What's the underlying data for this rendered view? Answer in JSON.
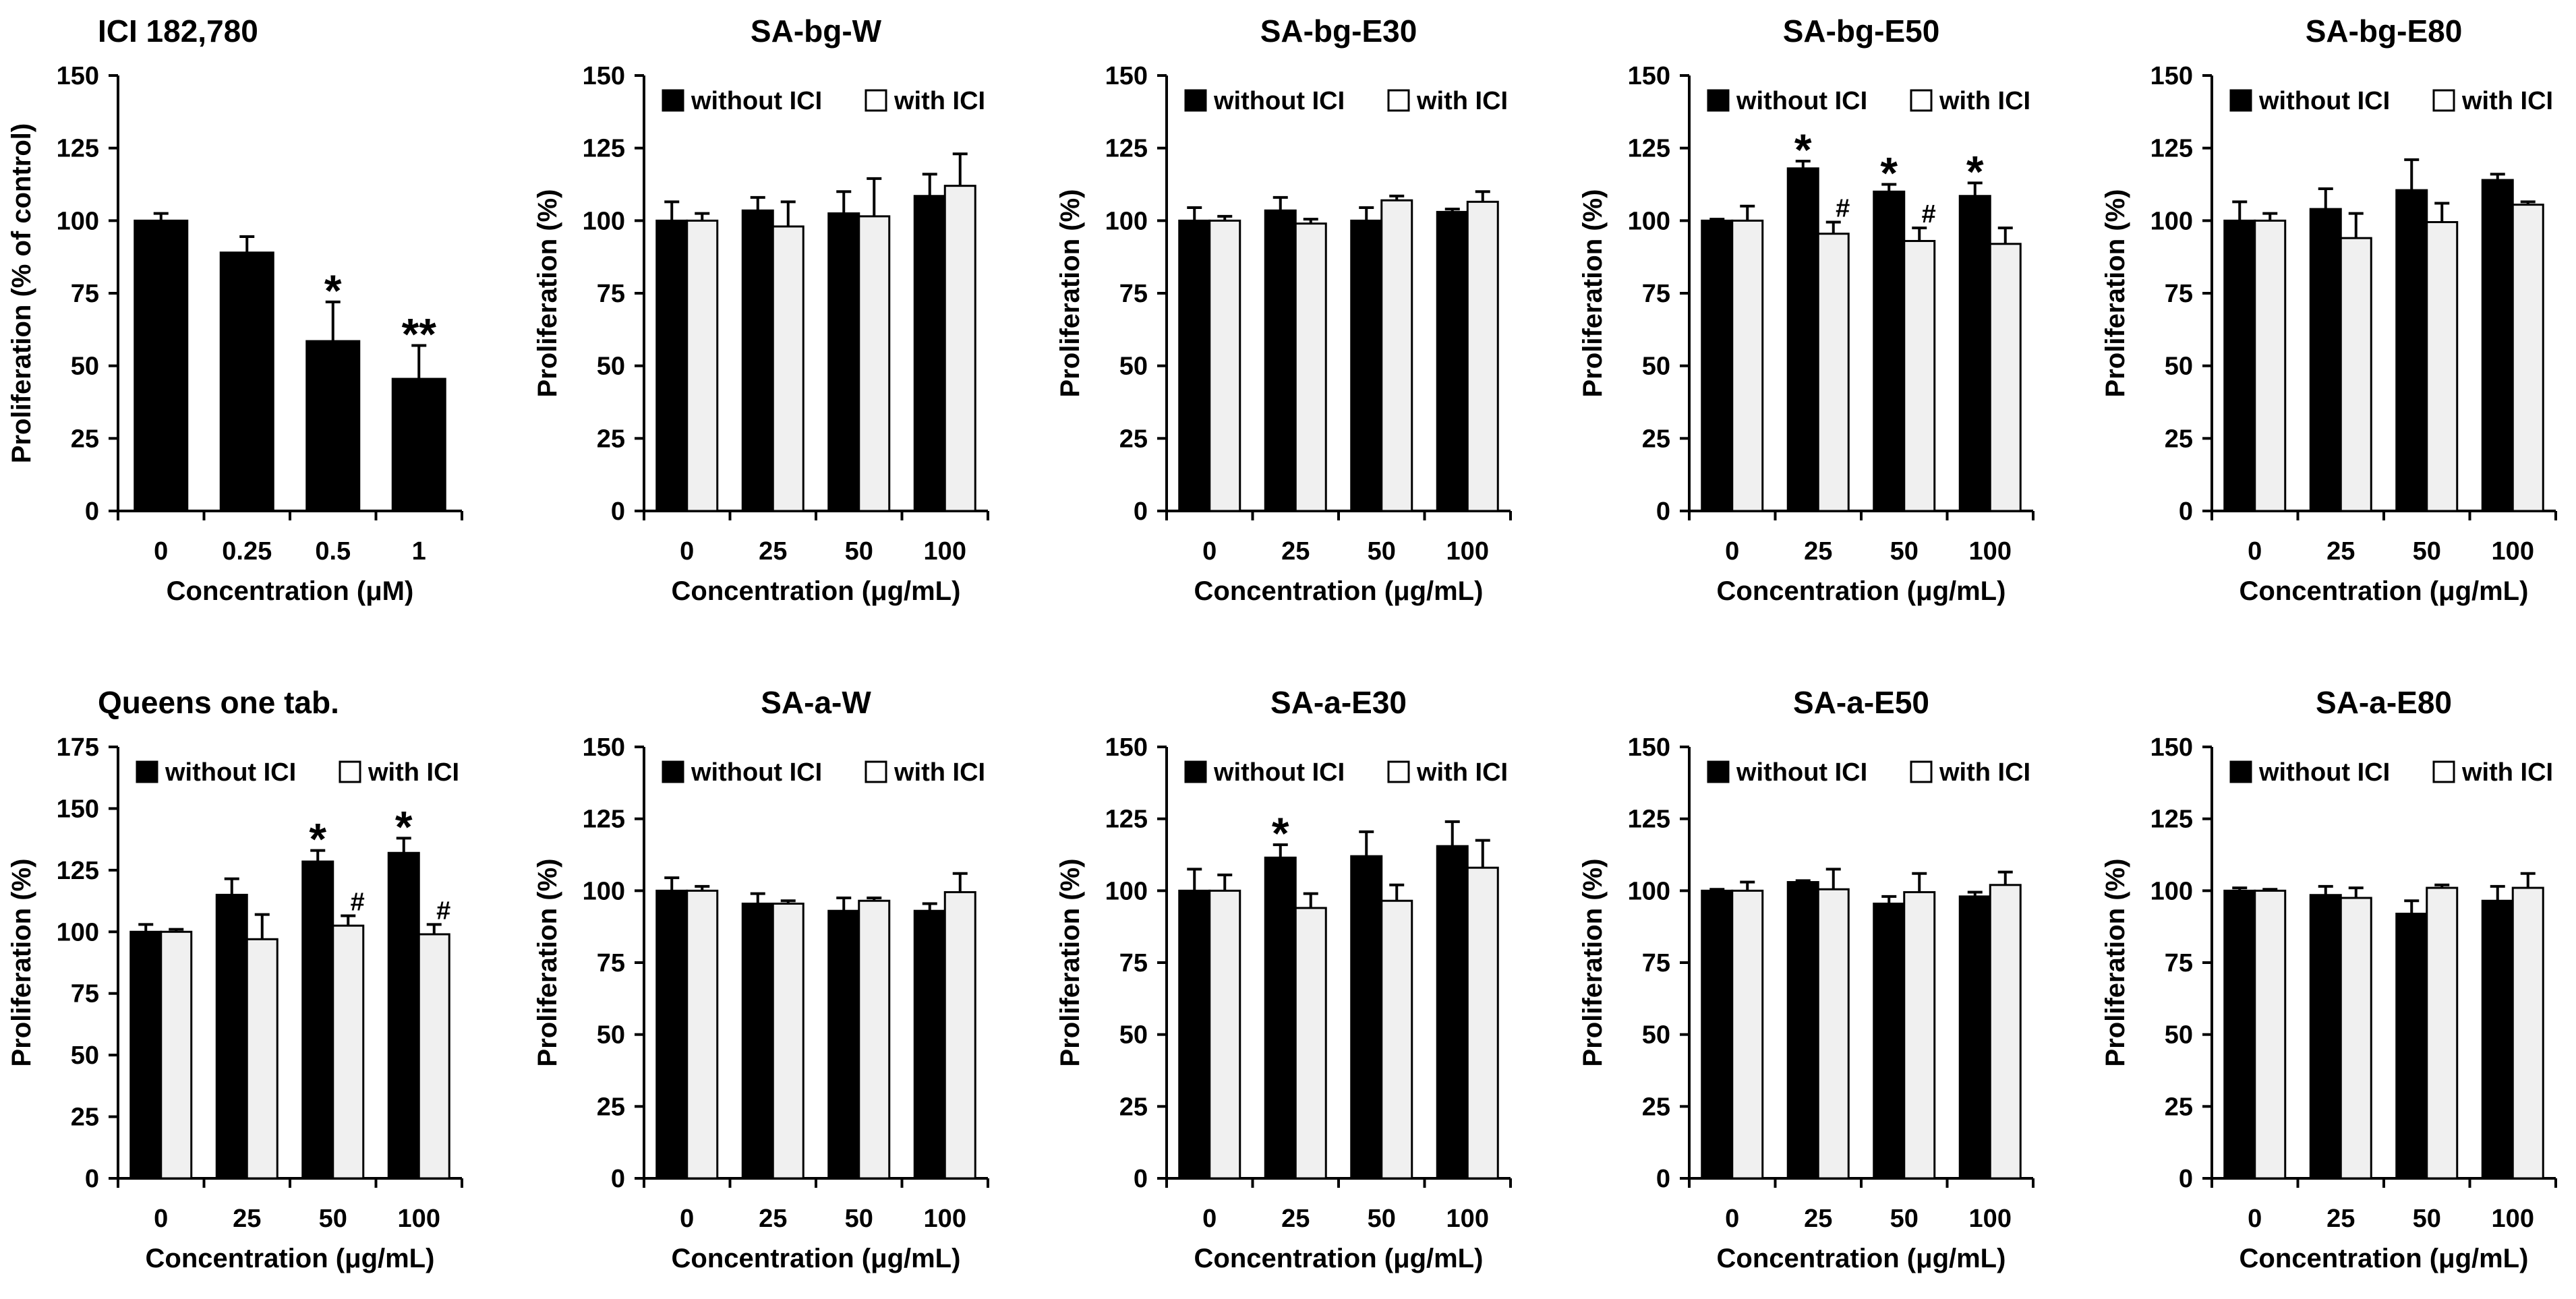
{
  "figure": {
    "name": "Proliferation figure"
  },
  "chart_data": [
    {
      "type": "bar",
      "title": "ICI 182,780",
      "title_align": "left",
      "categories": [
        "0",
        "0.25",
        "0.5",
        "1"
      ],
      "xlabel": "Concentration (μM)",
      "ylabel": "Proliferation (% of control)",
      "ylim": [
        0,
        150
      ],
      "yticks": [
        "0",
        "25",
        "50",
        "75",
        "100",
        "125",
        "150"
      ],
      "legend": [],
      "series": [
        {
          "name": "",
          "values": [
            100,
            89,
            58.5,
            45.5
          ],
          "errors": [
            2.5,
            5.5,
            13.5,
            11.5
          ],
          "color": "#000000"
        }
      ],
      "annotations": [
        {
          "category": 2,
          "series": 0,
          "text": "*"
        },
        {
          "category": 3,
          "series": 0,
          "text": "**"
        }
      ]
    },
    {
      "type": "bar",
      "title": "SA-bg-W",
      "title_align": "center",
      "categories": [
        "0",
        "25",
        "50",
        "100"
      ],
      "xlabel": "Concentration (μg/mL)",
      "ylabel": "Proliferation (%)",
      "ylim": [
        0,
        150
      ],
      "yticks": [
        "0",
        "25",
        "50",
        "75",
        "100",
        "125",
        "150"
      ],
      "legend": [
        "without ICI",
        "with ICI"
      ],
      "series": [
        {
          "name": "without ICI",
          "values": [
            100,
            103.5,
            102.5,
            108.5
          ],
          "errors": [
            6.5,
            4.5,
            7.5,
            7.5
          ],
          "color": "#000000"
        },
        {
          "name": "with ICI",
          "values": [
            100,
            98,
            101.5,
            112
          ],
          "errors": [
            2.5,
            8.5,
            13,
            11
          ],
          "color": "#f0f0f0"
        }
      ],
      "annotations": []
    },
    {
      "type": "bar",
      "title": "SA-bg-E30",
      "title_align": "center",
      "categories": [
        "0",
        "25",
        "50",
        "100"
      ],
      "xlabel": "Concentration (μg/mL)",
      "ylabel": "Proliferation (%)",
      "ylim": [
        0,
        150
      ],
      "yticks": [
        "0",
        "25",
        "50",
        "75",
        "100",
        "125",
        "150"
      ],
      "legend": [
        "without ICI",
        "with ICI"
      ],
      "series": [
        {
          "name": "without ICI",
          "values": [
            100,
            103.5,
            100,
            103
          ],
          "errors": [
            4.5,
            4.5,
            4.5,
            1
          ],
          "color": "#000000"
        },
        {
          "name": "with ICI",
          "values": [
            100,
            99,
            107,
            106.5
          ],
          "errors": [
            1.5,
            1.5,
            1.5,
            3.5
          ],
          "color": "#f0f0f0"
        }
      ],
      "annotations": []
    },
    {
      "type": "bar",
      "title": "SA-bg-E50",
      "title_align": "center",
      "categories": [
        "0",
        "25",
        "50",
        "100"
      ],
      "xlabel": "Concentration (μg/mL)",
      "ylabel": "Proliferation (%)",
      "ylim": [
        0,
        150
      ],
      "yticks": [
        "0",
        "25",
        "50",
        "75",
        "100",
        "125",
        "150"
      ],
      "legend": [
        "without ICI",
        "with ICI"
      ],
      "series": [
        {
          "name": "without ICI",
          "values": [
            100,
            118,
            110,
            108.5
          ],
          "errors": [
            0.5,
            2.5,
            2.5,
            4.5
          ],
          "color": "#000000"
        },
        {
          "name": "with ICI",
          "values": [
            100,
            95.5,
            93,
            92
          ],
          "errors": [
            5,
            4,
            4.5,
            5.5
          ],
          "color": "#f0f0f0"
        }
      ],
      "annotations": [
        {
          "category": 1,
          "series": 0,
          "text": "*"
        },
        {
          "category": 2,
          "series": 0,
          "text": "*"
        },
        {
          "category": 3,
          "series": 0,
          "text": "*"
        },
        {
          "category": 1,
          "series": 1,
          "text": "#"
        },
        {
          "category": 2,
          "series": 1,
          "text": "#"
        }
      ]
    },
    {
      "type": "bar",
      "title": "SA-bg-E80",
      "title_align": "center",
      "categories": [
        "0",
        "25",
        "50",
        "100"
      ],
      "xlabel": "Concentration (μg/mL)",
      "ylabel": "Proliferation (%)",
      "ylim": [
        0,
        150
      ],
      "yticks": [
        "0",
        "25",
        "50",
        "75",
        "100",
        "125",
        "150"
      ],
      "legend": [
        "without ICI",
        "with ICI"
      ],
      "series": [
        {
          "name": "without ICI",
          "values": [
            100,
            104,
            110.5,
            114
          ],
          "errors": [
            6.5,
            7,
            10.5,
            2
          ],
          "color": "#000000"
        },
        {
          "name": "with ICI",
          "values": [
            100,
            94,
            99.5,
            105.5
          ],
          "errors": [
            2.5,
            8.5,
            6.5,
            1
          ],
          "color": "#f0f0f0"
        }
      ],
      "annotations": []
    },
    {
      "type": "bar",
      "title": "Queens one tab.",
      "title_align": "left",
      "categories": [
        "0",
        "25",
        "50",
        "100"
      ],
      "xlabel": "Concentration (μg/mL)",
      "ylabel": "Proliferation (%)",
      "ylim": [
        0,
        175
      ],
      "yticks": [
        "0",
        "25",
        "50",
        "75",
        "100",
        "125",
        "150",
        "175"
      ],
      "legend": [
        "without ICI",
        "with ICI"
      ],
      "series": [
        {
          "name": "without ICI",
          "values": [
            100,
            115,
            128.5,
            132
          ],
          "errors": [
            3,
            6.5,
            4.5,
            6
          ],
          "color": "#000000"
        },
        {
          "name": "with ICI",
          "values": [
            100,
            97,
            102.5,
            99
          ],
          "errors": [
            1,
            10,
            4,
            4
          ],
          "color": "#f0f0f0"
        }
      ],
      "annotations": [
        {
          "category": 2,
          "series": 0,
          "text": "*"
        },
        {
          "category": 3,
          "series": 0,
          "text": "*"
        },
        {
          "category": 2,
          "series": 1,
          "text": "#"
        },
        {
          "category": 3,
          "series": 1,
          "text": "#"
        }
      ]
    },
    {
      "type": "bar",
      "title": "SA-a-W",
      "title_align": "center",
      "categories": [
        "0",
        "25",
        "50",
        "100"
      ],
      "xlabel": "Concentration (μg/mL)",
      "ylabel": "Proliferation (%)",
      "ylim": [
        0,
        150
      ],
      "yticks": [
        "0",
        "25",
        "50",
        "75",
        "100",
        "125",
        "150"
      ],
      "legend": [
        "without ICI",
        "with ICI"
      ],
      "series": [
        {
          "name": "without ICI",
          "values": [
            100,
            95.5,
            93,
            93
          ],
          "errors": [
            4.5,
            3.5,
            4.5,
            2.5
          ],
          "color": "#000000"
        },
        {
          "name": "with ICI",
          "values": [
            100,
            95.5,
            96.5,
            99.5
          ],
          "errors": [
            1.5,
            1,
            1,
            6.5
          ],
          "color": "#f0f0f0"
        }
      ],
      "annotations": []
    },
    {
      "type": "bar",
      "title": "SA-a-E30",
      "title_align": "center",
      "categories": [
        "0",
        "25",
        "50",
        "100"
      ],
      "xlabel": "Concentration (μg/mL)",
      "ylabel": "Proliferation (%)",
      "ylim": [
        0,
        150
      ],
      "yticks": [
        "0",
        "25",
        "50",
        "75",
        "100",
        "125",
        "150"
      ],
      "legend": [
        "without ICI",
        "with ICI"
      ],
      "series": [
        {
          "name": "without ICI",
          "values": [
            100,
            111.5,
            112,
            115.5
          ],
          "errors": [
            7.5,
            4.5,
            8.5,
            8.5
          ],
          "color": "#000000"
        },
        {
          "name": "with ICI",
          "values": [
            100,
            94,
            96.5,
            108
          ],
          "errors": [
            5.5,
            5,
            5.5,
            9.5
          ],
          "color": "#f0f0f0"
        }
      ],
      "annotations": [
        {
          "category": 1,
          "series": 0,
          "text": "*"
        }
      ]
    },
    {
      "type": "bar",
      "title": "SA-a-E50",
      "title_align": "center",
      "categories": [
        "0",
        "25",
        "50",
        "100"
      ],
      "xlabel": "Concentration (μg/mL)",
      "ylabel": "Proliferation (%)",
      "ylim": [
        0,
        150
      ],
      "yticks": [
        "0",
        "25",
        "50",
        "75",
        "100",
        "125",
        "150"
      ],
      "legend": [
        "without ICI",
        "with ICI"
      ],
      "series": [
        {
          "name": "without ICI",
          "values": [
            100,
            103,
            95.5,
            98
          ],
          "errors": [
            0.5,
            0.5,
            2.5,
            1.5
          ],
          "color": "#000000"
        },
        {
          "name": "with ICI",
          "values": [
            100,
            100.5,
            99.5,
            102
          ],
          "errors": [
            3,
            7,
            6.5,
            4.5
          ],
          "color": "#f0f0f0"
        }
      ],
      "annotations": []
    },
    {
      "type": "bar",
      "title": "SA-a-E80",
      "title_align": "center",
      "categories": [
        "0",
        "25",
        "50",
        "100"
      ],
      "xlabel": "Concentration (μg/mL)",
      "ylabel": "Proliferation (%)",
      "ylim": [
        0,
        150
      ],
      "yticks": [
        "0",
        "25",
        "50",
        "75",
        "100",
        "125",
        "150"
      ],
      "legend": [
        "without ICI",
        "with ICI"
      ],
      "series": [
        {
          "name": "without ICI",
          "values": [
            100,
            98.5,
            92,
            96.5
          ],
          "errors": [
            1,
            3,
            4.5,
            5
          ],
          "color": "#000000"
        },
        {
          "name": "with ICI",
          "values": [
            100,
            97.5,
            101,
            101
          ],
          "errors": [
            0.5,
            3.5,
            1,
            5
          ],
          "color": "#f0f0f0"
        }
      ],
      "annotations": []
    }
  ]
}
